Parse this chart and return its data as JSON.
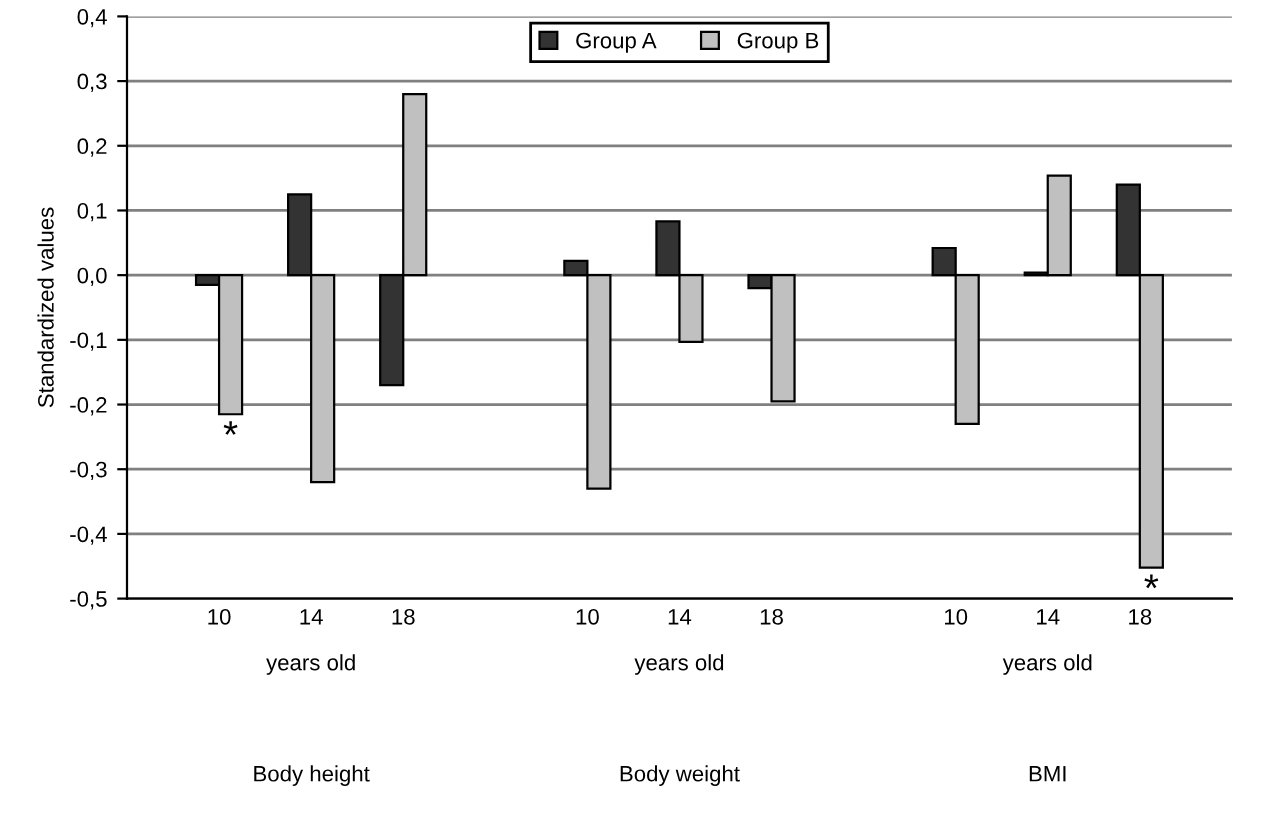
{
  "chart_data": {
    "type": "bar",
    "ylabel": "Standardized values",
    "categories": [
      "10",
      "14",
      "18",
      null,
      "10",
      "14",
      "18",
      null,
      "10",
      "14",
      "18"
    ],
    "series": [
      {
        "name": "Group A",
        "color": "#333333",
        "values": [
          -0.015,
          0.125,
          -0.17,
          null,
          0.022,
          0.083,
          -0.02,
          null,
          0.042,
          0.004,
          0.14
        ]
      },
      {
        "name": "Group B",
        "color": "#c0c0c0",
        "values": [
          -0.215,
          -0.32,
          0.28,
          null,
          -0.33,
          -0.103,
          -0.195,
          null,
          -0.23,
          0.154,
          -0.452
        ],
        "value_labels": [
          "*",
          null,
          null,
          null,
          null,
          null,
          null,
          null,
          null,
          null,
          "*"
        ]
      }
    ],
    "ylim": [
      -0.5,
      0.4
    ],
    "yticks": [
      {
        "value": -0.5,
        "label": "-0,5"
      },
      {
        "value": -0.4,
        "label": "-0,4"
      },
      {
        "value": -0.3,
        "label": "-0,3"
      },
      {
        "value": -0.2,
        "label": "-0,2"
      },
      {
        "value": -0.1,
        "label": "-0,1"
      },
      {
        "value": 0,
        "label": "0,0"
      },
      {
        "value": 0.1,
        "label": "0,1"
      },
      {
        "value": 0.2,
        "label": "0,2"
      },
      {
        "value": 0.3,
        "label": "0,3"
      },
      {
        "value": 0.4,
        "label": "0,4"
      }
    ],
    "grid": "y",
    "legend": "top",
    "annotations": [
      "years old",
      "years old",
      "years old",
      "Body height",
      "Body weight",
      "BMI"
    ]
  }
}
